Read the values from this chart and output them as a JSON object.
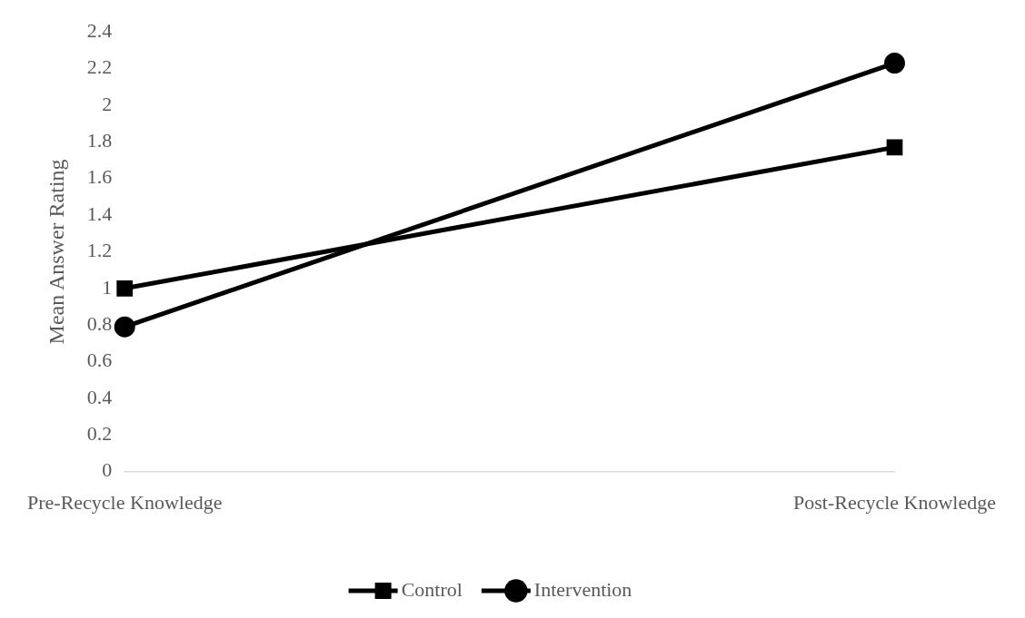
{
  "chart_data": {
    "type": "line",
    "ylabel": "Mean Answer Rating",
    "categories": [
      "Pre-Recycle Knowledge",
      "Post-Recycle Knowledge"
    ],
    "series": [
      {
        "name": "Control",
        "color": "#000000",
        "values": [
          1.0,
          1.77
        ],
        "marker": "square"
      },
      {
        "name": "Intervention",
        "color": "#000000",
        "values": [
          0.79,
          2.23
        ],
        "marker": "circle"
      }
    ],
    "ylim": [
      0,
      2.4
    ],
    "yticks": [
      0,
      0.2,
      0.4,
      0.6,
      0.8,
      1,
      1.2,
      1.4,
      1.6,
      1.8,
      2,
      2.2,
      2.4
    ],
    "grid": false,
    "legend": "bottom",
    "line_style": "solid"
  }
}
